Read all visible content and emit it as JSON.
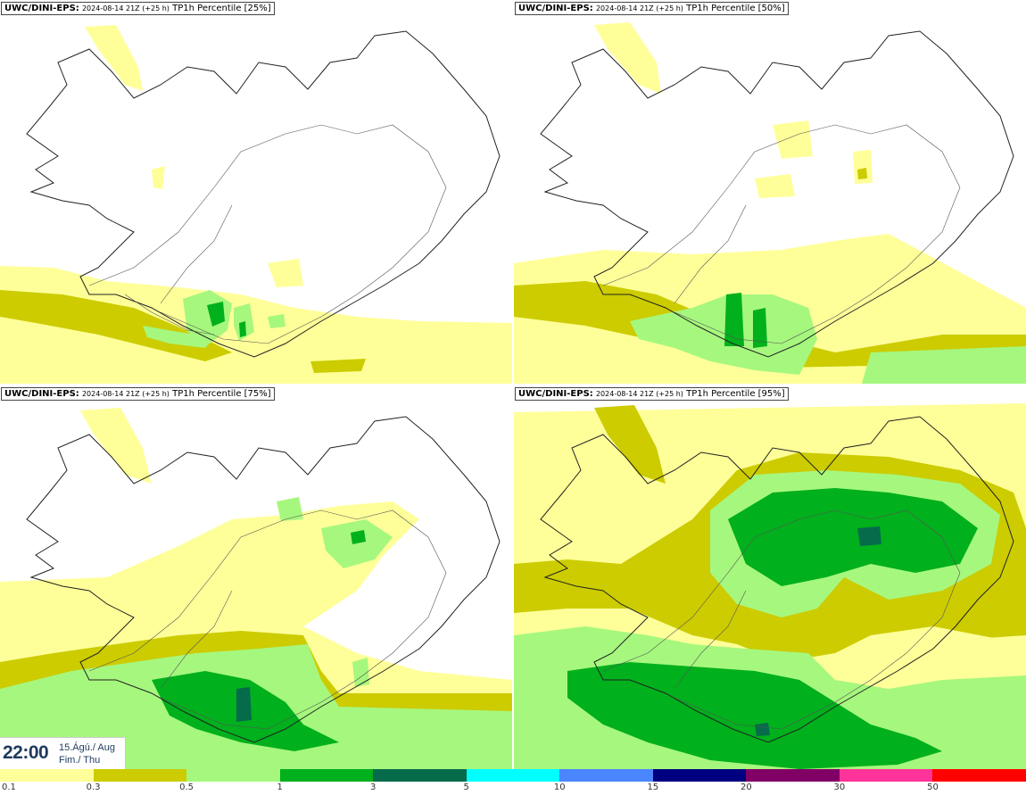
{
  "panels": [
    {
      "source": "UWC/DINI-EPS:",
      "run": "2024-08-14 21Z (+25 h)",
      "param": "TP1h Percentile [25%]"
    },
    {
      "source": "UWC/DINI-EPS:",
      "run": "2024-08-14 21Z (+25 h)",
      "param": "TP1h Percentile [50%]"
    },
    {
      "source": "UWC/DINI-EPS:",
      "run": "2024-08-14 21Z (+25 h)",
      "param": "TP1h Percentile [75%]"
    },
    {
      "source": "UWC/DINI-EPS:",
      "run": "2024-08-14 21Z (+25 h)",
      "param": "TP1h Percentile [95%]"
    }
  ],
  "valid_time": {
    "time": "22:00",
    "date_line1": "15.Ágú./ Aug",
    "date_line2": "Fim./ Thu"
  },
  "colorbar": {
    "colors": [
      "#ffff99",
      "#cccc00",
      "#a6f77e",
      "#00b01c",
      "#056b4a",
      "#00ffff",
      "#4a86ff",
      "#000080",
      "#800066",
      "#ff3399",
      "#ff0000"
    ],
    "ticks": [
      "0.1",
      "0.3",
      "0.5",
      "1",
      "3",
      "5",
      "10",
      "15",
      "20",
      "30",
      "50"
    ]
  }
}
